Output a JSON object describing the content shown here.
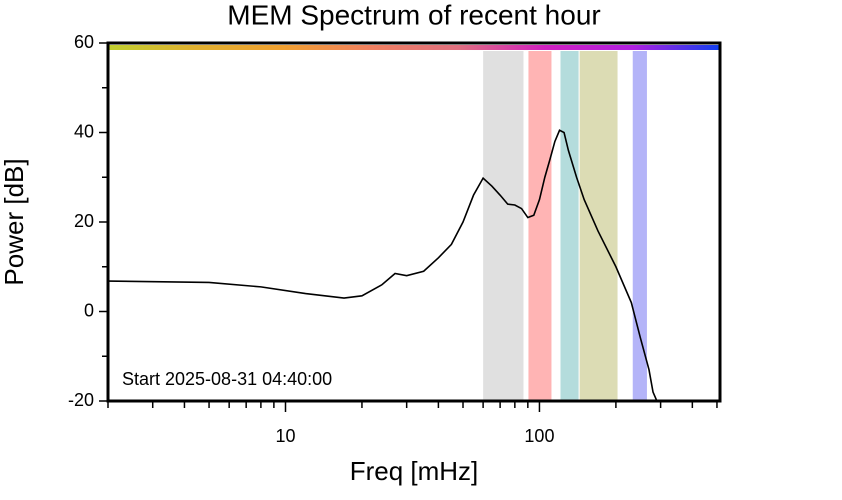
{
  "chart_data": {
    "type": "line",
    "title": "MEM Spectrum of recent hour",
    "x_label": "Freq [mHz]",
    "y_label": "Power [dB]",
    "annotation": "Start 2025-08-31 04:40:00",
    "x_log": true,
    "xlim": [
      2,
      514
    ],
    "ylim": [
      -20,
      60
    ],
    "xticks": [
      10,
      100
    ],
    "x_minor_ticks": [
      2,
      3,
      4,
      5,
      6,
      7,
      8,
      9,
      20,
      30,
      40,
      50,
      60,
      70,
      80,
      90,
      200,
      300,
      400,
      500
    ],
    "yticks": [
      -20,
      0,
      20,
      40,
      60
    ],
    "y_minor_ticks": [
      -10,
      10,
      30,
      50
    ],
    "color": "#000000",
    "x": [
      2,
      5,
      8,
      12,
      17,
      20,
      24,
      27,
      30,
      35,
      40,
      45,
      50,
      55,
      60,
      65,
      70,
      75,
      80,
      85,
      90,
      95,
      100,
      105,
      110,
      115,
      120,
      125,
      130,
      140,
      150,
      170,
      200,
      230,
      250,
      270,
      280,
      290
    ],
    "values": [
      6.8,
      6.5,
      5.5,
      4,
      3,
      3.5,
      6,
      8.5,
      8,
      9,
      12,
      15,
      20,
      26,
      29.8,
      28,
      26,
      24,
      23.8,
      23,
      21,
      21.5,
      25,
      30,
      34,
      38,
      40.5,
      40,
      36,
      30,
      25,
      18,
      10,
      2,
      -6,
      -13,
      -18,
      -20
    ],
    "bands": [
      {
        "range": [
          60,
          86.5
        ],
        "color": "#e0e0e0"
      },
      {
        "range": [
          90.5,
          111.5
        ],
        "color": "#ffb4b4"
      },
      {
        "range": [
          121,
          142.6
        ],
        "color": "#b4dcdc"
      },
      {
        "range": [
          144,
          203
        ],
        "color": "#dcdcb4"
      },
      {
        "range": [
          233,
          265
        ],
        "color": "#b4b4f8"
      }
    ],
    "top_bar_colors": [
      "#c0d030",
      "#e0b030",
      "#f0a030",
      "#f08060",
      "#e07080",
      "#d020c0",
      "#b020e0",
      "#1040f0"
    ]
  }
}
